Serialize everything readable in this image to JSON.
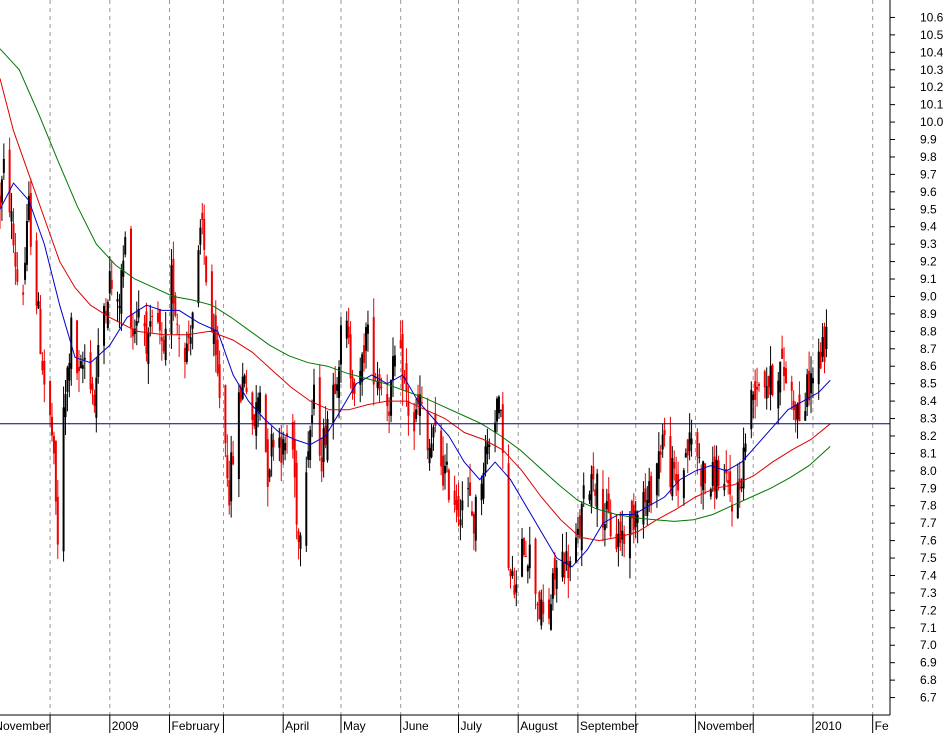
{
  "chart_data": {
    "type": "candlestick",
    "title": "",
    "xlabel": "",
    "ylabel": "",
    "ylim": [
      6.6,
      10.7
    ],
    "y_ticks": [
      6.7,
      6.8,
      6.9,
      7.0,
      7.1,
      7.2,
      7.3,
      7.4,
      7.5,
      7.6,
      7.7,
      7.8,
      7.9,
      8.0,
      8.1,
      8.2,
      8.3,
      8.4,
      8.5,
      8.6,
      8.7,
      8.8,
      8.9,
      9.0,
      9.1,
      9.2,
      9.3,
      9.4,
      9.5,
      9.6,
      9.7,
      9.8,
      9.9,
      10.0,
      10.1,
      10.2,
      10.3,
      10.4,
      10.5,
      10.6
    ],
    "y_tick_labels": [
      "6.7",
      "6.8",
      "6.9",
      "7.0",
      "7.1",
      "7.2",
      "7.3",
      "7.4",
      "7.5",
      "7.6",
      "7.7",
      "7.8",
      "7.9",
      "8.0",
      "8.1",
      "8.2",
      "8.3",
      "8.4",
      "8.5",
      "8.6",
      "8.7",
      "8.8",
      "8.9",
      "9.0",
      "9.1",
      "9.2",
      "9.3",
      "9.4",
      "9.5",
      "9.6",
      "9.7",
      "9.8",
      "9.9",
      "10.0",
      "10.1",
      "10.2",
      "10.3",
      "10.4",
      "10.5",
      "10.6"
    ],
    "x_range": [
      "2008-11-05",
      "2010-02-10"
    ],
    "x_ticks": [
      {
        "date": "2008-11-01",
        "label": "November"
      },
      {
        "date": "2008-12-01",
        "label": ""
      },
      {
        "date": "2009-01-01",
        "label": "2009"
      },
      {
        "date": "2009-02-01",
        "label": "February"
      },
      {
        "date": "2009-03-01",
        "label": ""
      },
      {
        "date": "2009-04-01",
        "label": "April"
      },
      {
        "date": "2009-05-01",
        "label": "May"
      },
      {
        "date": "2009-06-01",
        "label": "June"
      },
      {
        "date": "2009-07-01",
        "label": "July"
      },
      {
        "date": "2009-08-01",
        "label": "August"
      },
      {
        "date": "2009-09-01",
        "label": "September"
      },
      {
        "date": "2009-10-01",
        "label": ""
      },
      {
        "date": "2009-11-01",
        "label": "November"
      },
      {
        "date": "2009-12-01",
        "label": ""
      },
      {
        "date": "2010-01-01",
        "label": "2010"
      },
      {
        "date": "2010-02-01",
        "label": "Fe"
      }
    ],
    "price_curve": [
      [
        "2008-11-05",
        9.55
      ],
      [
        "2008-11-08",
        9.8
      ],
      [
        "2008-11-12",
        9.3
      ],
      [
        "2008-11-16",
        8.9
      ],
      [
        "2008-11-20",
        9.5
      ],
      [
        "2008-11-24",
        9.0
      ],
      [
        "2008-11-28",
        8.5
      ],
      [
        "2008-12-02",
        8.2
      ],
      [
        "2008-12-05",
        7.6
      ],
      [
        "2008-12-08",
        8.3
      ],
      [
        "2008-12-12",
        8.8
      ],
      [
        "2008-12-16",
        8.5
      ],
      [
        "2008-12-20",
        8.7
      ],
      [
        "2008-12-24",
        8.4
      ],
      [
        "2008-12-28",
        8.9
      ],
      [
        "2009-01-01",
        9.1
      ],
      [
        "2009-01-05",
        8.9
      ],
      [
        "2009-01-09",
        9.3
      ],
      [
        "2009-01-13",
        8.8
      ],
      [
        "2009-01-17",
        9.0
      ],
      [
        "2009-01-21",
        8.7
      ],
      [
        "2009-01-25",
        8.9
      ],
      [
        "2009-01-29",
        8.6
      ],
      [
        "2009-02-02",
        9.1
      ],
      [
        "2009-02-06",
        8.8
      ],
      [
        "2009-02-10",
        8.7
      ],
      [
        "2009-02-14",
        9.0
      ],
      [
        "2009-02-18",
        9.4
      ],
      [
        "2009-02-21",
        9.0
      ],
      [
        "2009-02-25",
        8.6
      ],
      [
        "2009-03-01",
        8.3
      ],
      [
        "2009-03-04",
        7.9
      ],
      [
        "2009-03-08",
        8.3
      ],
      [
        "2009-03-12",
        8.6
      ],
      [
        "2009-03-16",
        8.2
      ],
      [
        "2009-03-20",
        8.5
      ],
      [
        "2009-03-24",
        8.0
      ],
      [
        "2009-03-28",
        8.3
      ],
      [
        "2009-04-01",
        8.1
      ],
      [
        "2009-04-05",
        8.3
      ],
      [
        "2009-04-09",
        7.6
      ],
      [
        "2009-04-13",
        8.1
      ],
      [
        "2009-04-17",
        8.4
      ],
      [
        "2009-04-21",
        8.1
      ],
      [
        "2009-04-25",
        8.4
      ],
      [
        "2009-04-29",
        8.6
      ],
      [
        "2009-05-03",
        8.9
      ],
      [
        "2009-05-06",
        8.6
      ],
      [
        "2009-05-10",
        8.4
      ],
      [
        "2009-05-14",
        8.8
      ],
      [
        "2009-05-18",
        8.6
      ],
      [
        "2009-05-22",
        8.5
      ],
      [
        "2009-05-26",
        8.4
      ],
      [
        "2009-05-30",
        8.7
      ],
      [
        "2009-06-03",
        8.5
      ],
      [
        "2009-06-07",
        8.2
      ],
      [
        "2009-06-11",
        8.4
      ],
      [
        "2009-06-15",
        8.1
      ],
      [
        "2009-06-19",
        8.2
      ],
      [
        "2009-06-23",
        8.0
      ],
      [
        "2009-06-27",
        7.9
      ],
      [
        "2009-07-01",
        7.8
      ],
      [
        "2009-07-05",
        7.9
      ],
      [
        "2009-07-09",
        7.7
      ],
      [
        "2009-07-13",
        8.0
      ],
      [
        "2009-07-17",
        8.2
      ],
      [
        "2009-07-21",
        8.4
      ],
      [
        "2009-07-24",
        8.2
      ],
      [
        "2009-07-27",
        7.4
      ],
      [
        "2009-07-31",
        7.3
      ],
      [
        "2009-08-04",
        7.6
      ],
      [
        "2009-08-08",
        7.5
      ],
      [
        "2009-08-12",
        7.2
      ],
      [
        "2009-08-16",
        7.1
      ],
      [
        "2009-08-20",
        7.4
      ],
      [
        "2009-08-24",
        7.5
      ],
      [
        "2009-08-28",
        7.45
      ],
      [
        "2009-09-01",
        7.6
      ],
      [
        "2009-09-05",
        7.9
      ],
      [
        "2009-09-09",
        8.0
      ],
      [
        "2009-09-13",
        7.8
      ],
      [
        "2009-09-17",
        7.7
      ],
      [
        "2009-09-21",
        7.6
      ],
      [
        "2009-09-25",
        7.65
      ],
      [
        "2009-09-29",
        7.7
      ],
      [
        "2009-10-03",
        7.9
      ],
      [
        "2009-10-07",
        7.8
      ],
      [
        "2009-10-11",
        8.0
      ],
      [
        "2009-10-15",
        8.2
      ],
      [
        "2009-10-19",
        8.0
      ],
      [
        "2009-10-23",
        7.9
      ],
      [
        "2009-10-27",
        8.1
      ],
      [
        "2009-10-31",
        8.2
      ],
      [
        "2009-11-04",
        8.0
      ],
      [
        "2009-11-08",
        7.9
      ],
      [
        "2009-11-12",
        8.0
      ],
      [
        "2009-11-16",
        7.9
      ],
      [
        "2009-11-20",
        7.85
      ],
      [
        "2009-11-24",
        7.9
      ],
      [
        "2009-11-28",
        8.3
      ],
      [
        "2009-12-02",
        8.5
      ],
      [
        "2009-12-06",
        8.55
      ],
      [
        "2009-12-10",
        8.5
      ],
      [
        "2009-12-14",
        8.6
      ],
      [
        "2009-12-18",
        8.55
      ],
      [
        "2009-12-22",
        8.4
      ],
      [
        "2009-12-26",
        8.3
      ],
      [
        "2009-12-30",
        8.5
      ],
      [
        "2010-01-03",
        8.6
      ],
      [
        "2010-01-07",
        8.7
      ],
      [
        "2010-01-10",
        8.9
      ]
    ],
    "series": [
      {
        "color": "#0000cc",
        "values": [
          [
            "2008-11-05",
            9.5
          ],
          [
            "2008-11-12",
            9.65
          ],
          [
            "2008-11-20",
            9.55
          ],
          [
            "2008-11-28",
            9.3
          ],
          [
            "2008-12-06",
            8.95
          ],
          [
            "2008-12-14",
            8.65
          ],
          [
            "2008-12-22",
            8.62
          ],
          [
            "2009-01-01",
            8.72
          ],
          [
            "2009-01-10",
            8.88
          ],
          [
            "2009-01-20",
            8.95
          ],
          [
            "2009-01-28",
            8.92
          ],
          [
            "2009-02-06",
            8.92
          ],
          [
            "2009-02-16",
            8.85
          ],
          [
            "2009-02-26",
            8.8
          ],
          [
            "2009-03-06",
            8.55
          ],
          [
            "2009-03-14",
            8.4
          ],
          [
            "2009-03-22",
            8.3
          ],
          [
            "2009-03-30",
            8.22
          ],
          [
            "2009-04-07",
            8.18
          ],
          [
            "2009-04-15",
            8.15
          ],
          [
            "2009-04-23",
            8.2
          ],
          [
            "2009-05-01",
            8.35
          ],
          [
            "2009-05-09",
            8.5
          ],
          [
            "2009-05-17",
            8.55
          ],
          [
            "2009-05-25",
            8.5
          ],
          [
            "2009-06-02",
            8.55
          ],
          [
            "2009-06-10",
            8.4
          ],
          [
            "2009-06-18",
            8.3
          ],
          [
            "2009-06-26",
            8.2
          ],
          [
            "2009-07-04",
            8.05
          ],
          [
            "2009-07-12",
            7.95
          ],
          [
            "2009-07-20",
            8.05
          ],
          [
            "2009-07-28",
            7.95
          ],
          [
            "2009-08-05",
            7.8
          ],
          [
            "2009-08-13",
            7.65
          ],
          [
            "2009-08-21",
            7.5
          ],
          [
            "2009-08-29",
            7.45
          ],
          [
            "2009-09-06",
            7.55
          ],
          [
            "2009-09-14",
            7.7
          ],
          [
            "2009-09-22",
            7.75
          ],
          [
            "2009-09-30",
            7.75
          ],
          [
            "2009-10-08",
            7.8
          ],
          [
            "2009-10-16",
            7.85
          ],
          [
            "2009-10-24",
            7.95
          ],
          [
            "2009-11-01",
            8.0
          ],
          [
            "2009-11-09",
            8.03
          ],
          [
            "2009-11-17",
            8.0
          ],
          [
            "2009-11-25",
            8.05
          ],
          [
            "2009-12-03",
            8.15
          ],
          [
            "2009-12-11",
            8.25
          ],
          [
            "2009-12-19",
            8.35
          ],
          [
            "2009-12-27",
            8.4
          ],
          [
            "2010-01-04",
            8.45
          ],
          [
            "2010-01-10",
            8.52
          ]
        ]
      },
      {
        "color": "#dd0000",
        "values": [
          [
            "2008-11-05",
            10.25
          ],
          [
            "2008-11-12",
            9.95
          ],
          [
            "2008-11-20",
            9.7
          ],
          [
            "2008-11-28",
            9.45
          ],
          [
            "2008-12-06",
            9.2
          ],
          [
            "2008-12-14",
            9.05
          ],
          [
            "2008-12-22",
            8.95
          ],
          [
            "2009-01-01",
            8.88
          ],
          [
            "2009-01-15",
            8.8
          ],
          [
            "2009-01-29",
            8.78
          ],
          [
            "2009-02-10",
            8.78
          ],
          [
            "2009-02-22",
            8.8
          ],
          [
            "2009-03-06",
            8.75
          ],
          [
            "2009-03-16",
            8.68
          ],
          [
            "2009-03-26",
            8.58
          ],
          [
            "2009-04-05",
            8.48
          ],
          [
            "2009-04-15",
            8.4
          ],
          [
            "2009-04-25",
            8.35
          ],
          [
            "2009-05-05",
            8.35
          ],
          [
            "2009-05-15",
            8.38
          ],
          [
            "2009-05-25",
            8.4
          ],
          [
            "2009-06-04",
            8.4
          ],
          [
            "2009-06-14",
            8.35
          ],
          [
            "2009-06-24",
            8.3
          ],
          [
            "2009-07-04",
            8.22
          ],
          [
            "2009-07-14",
            8.18
          ],
          [
            "2009-07-24",
            8.12
          ],
          [
            "2009-08-03",
            8.0
          ],
          [
            "2009-08-13",
            7.85
          ],
          [
            "2009-08-23",
            7.72
          ],
          [
            "2009-09-02",
            7.62
          ],
          [
            "2009-09-12",
            7.6
          ],
          [
            "2009-09-22",
            7.62
          ],
          [
            "2009-10-02",
            7.65
          ],
          [
            "2009-10-12",
            7.72
          ],
          [
            "2009-10-22",
            7.78
          ],
          [
            "2009-11-01",
            7.85
          ],
          [
            "2009-11-11",
            7.9
          ],
          [
            "2009-11-21",
            7.92
          ],
          [
            "2009-12-01",
            7.97
          ],
          [
            "2009-12-11",
            8.05
          ],
          [
            "2009-12-21",
            8.12
          ],
          [
            "2009-12-31",
            8.18
          ],
          [
            "2010-01-10",
            8.27
          ]
        ]
      },
      {
        "color": "#007700",
        "values": [
          [
            "2008-11-05",
            10.42
          ],
          [
            "2008-11-15",
            10.3
          ],
          [
            "2008-11-25",
            10.05
          ],
          [
            "2008-12-05",
            9.78
          ],
          [
            "2008-12-15",
            9.52
          ],
          [
            "2008-12-25",
            9.3
          ],
          [
            "2009-01-04",
            9.18
          ],
          [
            "2009-01-14",
            9.1
          ],
          [
            "2009-01-24",
            9.05
          ],
          [
            "2009-02-03",
            9.0
          ],
          [
            "2009-02-13",
            8.98
          ],
          [
            "2009-02-23",
            8.95
          ],
          [
            "2009-03-05",
            8.88
          ],
          [
            "2009-03-15",
            8.8
          ],
          [
            "2009-03-25",
            8.72
          ],
          [
            "2009-04-04",
            8.66
          ],
          [
            "2009-04-14",
            8.62
          ],
          [
            "2009-04-24",
            8.6
          ],
          [
            "2009-05-04",
            8.56
          ],
          [
            "2009-05-14",
            8.53
          ],
          [
            "2009-05-24",
            8.5
          ],
          [
            "2009-06-03",
            8.46
          ],
          [
            "2009-06-13",
            8.42
          ],
          [
            "2009-06-23",
            8.37
          ],
          [
            "2009-07-03",
            8.32
          ],
          [
            "2009-07-13",
            8.27
          ],
          [
            "2009-07-23",
            8.2
          ],
          [
            "2009-08-02",
            8.12
          ],
          [
            "2009-08-12",
            8.02
          ],
          [
            "2009-08-22",
            7.92
          ],
          [
            "2009-09-01",
            7.83
          ],
          [
            "2009-09-11",
            7.78
          ],
          [
            "2009-09-21",
            7.75
          ],
          [
            "2009-10-01",
            7.73
          ],
          [
            "2009-10-11",
            7.72
          ],
          [
            "2009-10-21",
            7.71
          ],
          [
            "2009-10-31",
            7.72
          ],
          [
            "2009-11-10",
            7.75
          ],
          [
            "2009-11-20",
            7.8
          ],
          [
            "2009-11-30",
            7.85
          ],
          [
            "2009-12-10",
            7.9
          ],
          [
            "2009-12-20",
            7.96
          ],
          [
            "2009-12-30",
            8.03
          ],
          [
            "2010-01-10",
            8.14
          ]
        ]
      }
    ],
    "horizontal_line": {
      "value": 8.27,
      "color": "#000080"
    },
    "colors": {
      "up": "#000000",
      "down": "#ee0000",
      "grid": "#999999",
      "axis": "#000000"
    },
    "grid": "vertical-dashed",
    "legend": "none"
  }
}
